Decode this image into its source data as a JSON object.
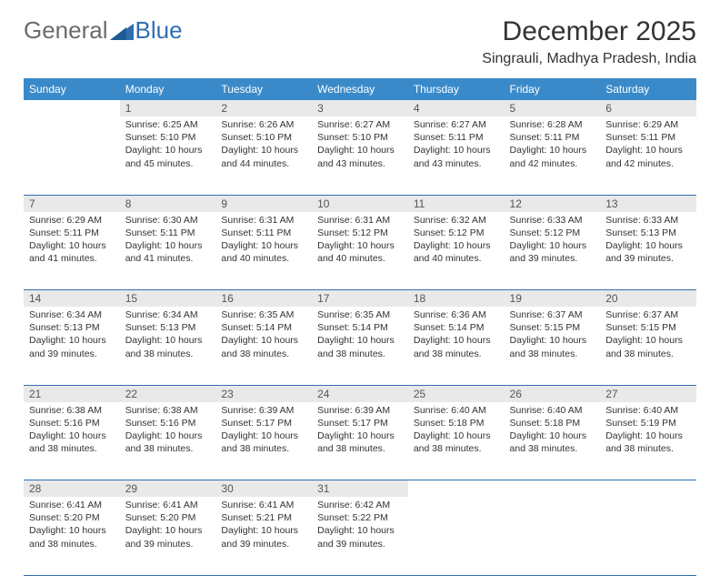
{
  "logo": {
    "part1": "General",
    "part2": "Blue"
  },
  "title": "December 2025",
  "location": "Singrauli, Madhya Pradesh, India",
  "colors": {
    "header_bg": "#3a8ac9",
    "header_text": "#ffffff",
    "daynum_bg": "#e9e9e9",
    "row_border": "#2f6fb0",
    "logo_gray": "#6b6b6b",
    "logo_blue": "#2f6fb0",
    "body_text": "#333333",
    "page_bg": "#ffffff"
  },
  "typography": {
    "title_fontsize": 30,
    "location_fontsize": 16,
    "dayheader_fontsize": 12,
    "cell_fontsize": 10.5
  },
  "day_headers": [
    "Sunday",
    "Monday",
    "Tuesday",
    "Wednesday",
    "Thursday",
    "Friday",
    "Saturday"
  ],
  "weeks": [
    [
      null,
      {
        "n": "1",
        "sr": "Sunrise: 6:25 AM",
        "ss": "Sunset: 5:10 PM",
        "dl": "Daylight: 10 hours and 45 minutes."
      },
      {
        "n": "2",
        "sr": "Sunrise: 6:26 AM",
        "ss": "Sunset: 5:10 PM",
        "dl": "Daylight: 10 hours and 44 minutes."
      },
      {
        "n": "3",
        "sr": "Sunrise: 6:27 AM",
        "ss": "Sunset: 5:10 PM",
        "dl": "Daylight: 10 hours and 43 minutes."
      },
      {
        "n": "4",
        "sr": "Sunrise: 6:27 AM",
        "ss": "Sunset: 5:11 PM",
        "dl": "Daylight: 10 hours and 43 minutes."
      },
      {
        "n": "5",
        "sr": "Sunrise: 6:28 AM",
        "ss": "Sunset: 5:11 PM",
        "dl": "Daylight: 10 hours and 42 minutes."
      },
      {
        "n": "6",
        "sr": "Sunrise: 6:29 AM",
        "ss": "Sunset: 5:11 PM",
        "dl": "Daylight: 10 hours and 42 minutes."
      }
    ],
    [
      {
        "n": "7",
        "sr": "Sunrise: 6:29 AM",
        "ss": "Sunset: 5:11 PM",
        "dl": "Daylight: 10 hours and 41 minutes."
      },
      {
        "n": "8",
        "sr": "Sunrise: 6:30 AM",
        "ss": "Sunset: 5:11 PM",
        "dl": "Daylight: 10 hours and 41 minutes."
      },
      {
        "n": "9",
        "sr": "Sunrise: 6:31 AM",
        "ss": "Sunset: 5:11 PM",
        "dl": "Daylight: 10 hours and 40 minutes."
      },
      {
        "n": "10",
        "sr": "Sunrise: 6:31 AM",
        "ss": "Sunset: 5:12 PM",
        "dl": "Daylight: 10 hours and 40 minutes."
      },
      {
        "n": "11",
        "sr": "Sunrise: 6:32 AM",
        "ss": "Sunset: 5:12 PM",
        "dl": "Daylight: 10 hours and 40 minutes."
      },
      {
        "n": "12",
        "sr": "Sunrise: 6:33 AM",
        "ss": "Sunset: 5:12 PM",
        "dl": "Daylight: 10 hours and 39 minutes."
      },
      {
        "n": "13",
        "sr": "Sunrise: 6:33 AM",
        "ss": "Sunset: 5:13 PM",
        "dl": "Daylight: 10 hours and 39 minutes."
      }
    ],
    [
      {
        "n": "14",
        "sr": "Sunrise: 6:34 AM",
        "ss": "Sunset: 5:13 PM",
        "dl": "Daylight: 10 hours and 39 minutes."
      },
      {
        "n": "15",
        "sr": "Sunrise: 6:34 AM",
        "ss": "Sunset: 5:13 PM",
        "dl": "Daylight: 10 hours and 38 minutes."
      },
      {
        "n": "16",
        "sr": "Sunrise: 6:35 AM",
        "ss": "Sunset: 5:14 PM",
        "dl": "Daylight: 10 hours and 38 minutes."
      },
      {
        "n": "17",
        "sr": "Sunrise: 6:35 AM",
        "ss": "Sunset: 5:14 PM",
        "dl": "Daylight: 10 hours and 38 minutes."
      },
      {
        "n": "18",
        "sr": "Sunrise: 6:36 AM",
        "ss": "Sunset: 5:14 PM",
        "dl": "Daylight: 10 hours and 38 minutes."
      },
      {
        "n": "19",
        "sr": "Sunrise: 6:37 AM",
        "ss": "Sunset: 5:15 PM",
        "dl": "Daylight: 10 hours and 38 minutes."
      },
      {
        "n": "20",
        "sr": "Sunrise: 6:37 AM",
        "ss": "Sunset: 5:15 PM",
        "dl": "Daylight: 10 hours and 38 minutes."
      }
    ],
    [
      {
        "n": "21",
        "sr": "Sunrise: 6:38 AM",
        "ss": "Sunset: 5:16 PM",
        "dl": "Daylight: 10 hours and 38 minutes."
      },
      {
        "n": "22",
        "sr": "Sunrise: 6:38 AM",
        "ss": "Sunset: 5:16 PM",
        "dl": "Daylight: 10 hours and 38 minutes."
      },
      {
        "n": "23",
        "sr": "Sunrise: 6:39 AM",
        "ss": "Sunset: 5:17 PM",
        "dl": "Daylight: 10 hours and 38 minutes."
      },
      {
        "n": "24",
        "sr": "Sunrise: 6:39 AM",
        "ss": "Sunset: 5:17 PM",
        "dl": "Daylight: 10 hours and 38 minutes."
      },
      {
        "n": "25",
        "sr": "Sunrise: 6:40 AM",
        "ss": "Sunset: 5:18 PM",
        "dl": "Daylight: 10 hours and 38 minutes."
      },
      {
        "n": "26",
        "sr": "Sunrise: 6:40 AM",
        "ss": "Sunset: 5:18 PM",
        "dl": "Daylight: 10 hours and 38 minutes."
      },
      {
        "n": "27",
        "sr": "Sunrise: 6:40 AM",
        "ss": "Sunset: 5:19 PM",
        "dl": "Daylight: 10 hours and 38 minutes."
      }
    ],
    [
      {
        "n": "28",
        "sr": "Sunrise: 6:41 AM",
        "ss": "Sunset: 5:20 PM",
        "dl": "Daylight: 10 hours and 38 minutes."
      },
      {
        "n": "29",
        "sr": "Sunrise: 6:41 AM",
        "ss": "Sunset: 5:20 PM",
        "dl": "Daylight: 10 hours and 39 minutes."
      },
      {
        "n": "30",
        "sr": "Sunrise: 6:41 AM",
        "ss": "Sunset: 5:21 PM",
        "dl": "Daylight: 10 hours and 39 minutes."
      },
      {
        "n": "31",
        "sr": "Sunrise: 6:42 AM",
        "ss": "Sunset: 5:22 PM",
        "dl": "Daylight: 10 hours and 39 minutes."
      },
      null,
      null,
      null
    ]
  ]
}
